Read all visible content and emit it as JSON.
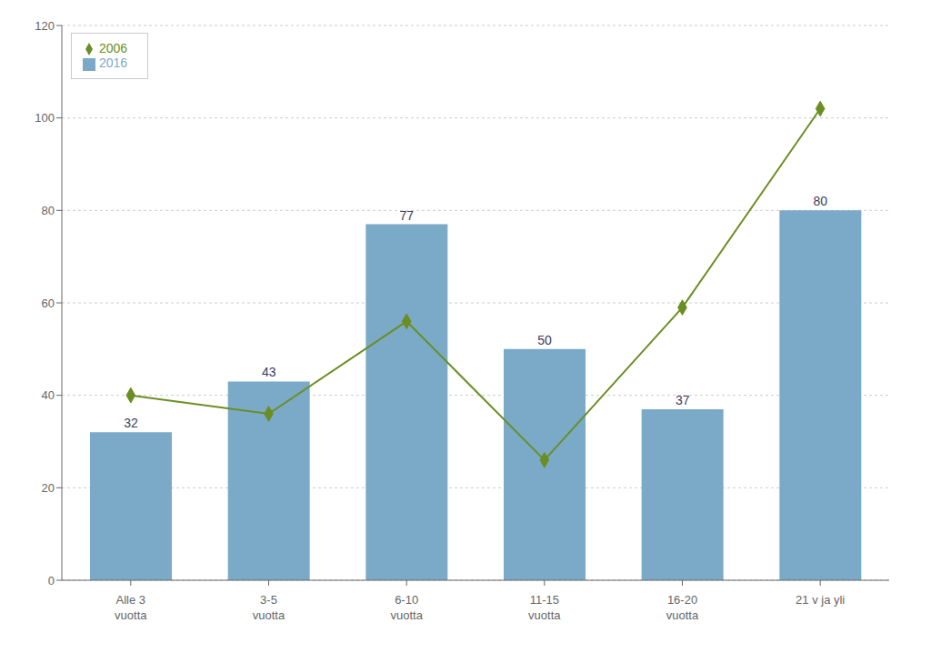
{
  "chart_data": {
    "type": "bar",
    "categories": [
      "Alle 3\nvuotta",
      "3-5\nvuotta",
      "6-10\nvuotta",
      "11-15\nvuotta",
      "16-20\nvuotta",
      "21 v ja yli"
    ],
    "series": [
      {
        "name": "2016",
        "type": "bar",
        "color": "#7aaac8",
        "values": [
          32,
          43,
          77,
          50,
          37,
          80
        ],
        "data_labels": true
      },
      {
        "name": "2006",
        "type": "line",
        "color": "#6b8e23",
        "marker": "diamond",
        "values": [
          40,
          36,
          56,
          26,
          59,
          102
        ]
      }
    ],
    "ylim": [
      0,
      120
    ],
    "yticks": [
      0,
      20,
      40,
      60,
      80,
      100,
      120
    ],
    "grid": true,
    "legend": "upper left"
  }
}
